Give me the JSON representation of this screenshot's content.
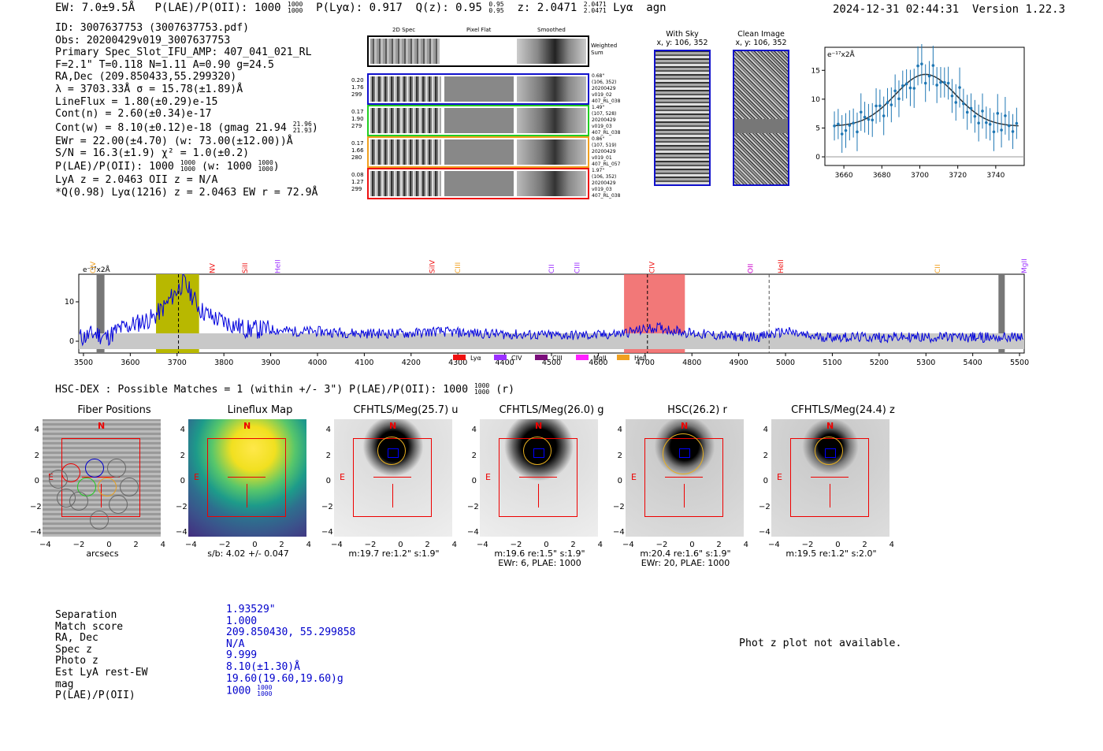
{
  "header": {
    "ew": "EW: 7.0±9.5Å",
    "plae_label": "P(LAE)/P(OII): 1000",
    "plae_sup": "1000",
    "plae_sub": "1000",
    "plya": "P(Lyα): 0.917",
    "qz_label": "Q(z): 0.95",
    "qz_sup": "0.95",
    "qz_sub": "0.95",
    "z_label": "z: 2.0471",
    "z_sup": "2.0471",
    "z_sub": "2.0471",
    "line": "Lyα",
    "agn": "agn",
    "timestamp": "2024-12-31 02:44:31",
    "version": "Version 1.22.3"
  },
  "info": {
    "id": "ID: 3007637753 (3007637753.pdf)",
    "obs": "Obs: 20200429v019_3007637753",
    "primary": "Primary Spec_Slot_IFU_AMP: 407_041_021_RL",
    "fiber": "F=2.1\"  T=0.118  N=1.11  A=0.90  g=24.5",
    "radec": "RA,Dec (209.850433,55.299320)",
    "lambda": "λ = 3703.33Å  σ = 15.78(±1.89)Å",
    "lineflux": "LineFlux = 1.80(±0.29)e-15",
    "contn": "Cont(n) = 2.60(±0.34)e-17",
    "contw": "Cont(w) = 8.10(±0.12)e-18 (gmag 21.94",
    "contw_sup": "21.96",
    "contw_sub": "21.93",
    "contw_end": ")",
    "ewr": "EWr = 22.00(±4.70) (w: 73.00(±12.00))Å",
    "sn": "S/N = 16.3(±1.9)  χ² = 1.0(±0.2)",
    "plae": "P(LAE)/P(OII): 1000",
    "plae_sup": "1000",
    "plae_sub": "1000",
    "plae_w": "(w: 1000",
    "plae_w_sup": "1000",
    "plae_w_sub": "1000",
    "plae_w_end": ")",
    "lyaz": "LyA z = 2.0463  OII z = N/A",
    "qline": "*Q(0.98) Lyα(1216) z = 2.0463  EW r = 72.9Å"
  },
  "spec2d": {
    "col_headers": [
      "2D Spec",
      "Pixel Flat",
      "Smoothed"
    ],
    "weighted_sum": "Weighted Sum",
    "rows": [
      {
        "left": [
          "0.20",
          "1.76",
          "299"
        ],
        "right": [
          "0.68\"",
          "(106, 352)",
          "20200429",
          "v019_02",
          "407_RL_038"
        ],
        "color": "#1010cc"
      },
      {
        "left": [
          "0.17",
          "1.90",
          "279"
        ],
        "right": [
          "1.49\"",
          "(107, 528)",
          "20200429",
          "v019_03",
          "407_RL_038"
        ],
        "color": "#22cc22"
      },
      {
        "left": [
          "0.17",
          "1.66",
          "280"
        ],
        "right": [
          "0.86\"",
          "(107, 519)",
          "20200429",
          "v019_01",
          "407_RL_057"
        ],
        "color": "#f0a020"
      },
      {
        "left": [
          "0.08",
          "1.27",
          "299"
        ],
        "right": [
          "1.97\"",
          "(106, 352)",
          "20200429",
          "v019_03",
          "407_RL_038"
        ],
        "color": "#ee1111"
      }
    ]
  },
  "sky": {
    "with_sky_title": "With Sky",
    "with_sky_coords": "x, y: 106, 352",
    "clean_title": "Clean Image",
    "clean_coords": "x, y: 106, 352"
  },
  "zoom_plot": {
    "unit": "e⁻¹⁷x2Å",
    "x_ticks": [
      "3660",
      "3680",
      "3700",
      "3720",
      "3740"
    ],
    "y_ticks": [
      "0",
      "5",
      "10",
      "15"
    ]
  },
  "chart_data": {
    "type": "line",
    "unit_label": "e⁻¹⁷x2Å",
    "xlim": [
      3490,
      5510
    ],
    "ylim": [
      -3,
      17
    ],
    "x_ticks": [
      3500,
      3600,
      3700,
      3800,
      3900,
      4000,
      4100,
      4200,
      4300,
      4400,
      4500,
      4600,
      4700,
      4800,
      4900,
      5000,
      5100,
      5200,
      5300,
      5400,
      5500
    ],
    "y_ticks": [
      0,
      10
    ],
    "line_markers": [
      {
        "label": "CIV",
        "x": 3520,
        "color": "#f0a020"
      },
      {
        "label": "NV",
        "x": 3775,
        "color": "#ee1111"
      },
      {
        "label": "SiII",
        "x": 3845,
        "color": "#ee1111"
      },
      {
        "label": "HeII",
        "x": 3915,
        "color": "#9b30ff"
      },
      {
        "label": "SiIV",
        "x": 4245,
        "color": "#ee1111"
      },
      {
        "label": "CIII",
        "x": 4300,
        "color": "#f0a020"
      },
      {
        "label": "CII",
        "x": 4500,
        "color": "#9b30ff"
      },
      {
        "label": "CIII",
        "x": 4555,
        "color": "#9b30ff"
      },
      {
        "label": "CIV",
        "x": 4715,
        "color": "#ee1111"
      },
      {
        "label": "OII",
        "x": 4925,
        "color": "#cc00cc"
      },
      {
        "label": "HeII",
        "x": 4990,
        "color": "#ee1111"
      },
      {
        "label": "CII",
        "x": 5325,
        "color": "#f0a020"
      },
      {
        "label": "MgII",
        "x": 5510,
        "color": "#9b30ff"
      }
    ],
    "legend": [
      {
        "label": "Lyα",
        "color": "#ee1111"
      },
      {
        "label": "CIV",
        "color": "#9b30ff"
      },
      {
        "label": "CIII",
        "color": "#7b0e7b"
      },
      {
        "label": "MgII",
        "color": "#ff22ff"
      },
      {
        "label": "HeII",
        "color": "#f0a020"
      }
    ],
    "series": [
      {
        "x": [
          3500,
          3525,
          3550,
          3575,
          3600,
          3625,
          3650,
          3675,
          3700,
          3715,
          3730,
          3750,
          3775,
          3800,
          3825,
          3850,
          3900,
          3950,
          4000,
          4050,
          4100,
          4150,
          4200,
          4250,
          4300,
          4350,
          4400,
          4450,
          4500,
          4550,
          4600,
          4650,
          4700,
          4725,
          4750,
          4800,
          4850,
          4900,
          4950,
          5000,
          5050,
          5100,
          5150,
          5200,
          5250,
          5300,
          5350,
          5400,
          5450,
          5500
        ],
        "y": [
          1,
          2,
          1,
          3,
          4,
          5,
          6,
          9,
          13,
          15,
          12,
          8,
          6,
          5,
          4,
          3,
          3,
          2.5,
          2.5,
          2.2,
          2,
          2,
          2,
          2.5,
          2.2,
          2,
          1.8,
          1.6,
          1.5,
          1.5,
          1.5,
          2,
          3,
          3.5,
          3,
          2,
          1.5,
          1.2,
          1.2,
          2.5,
          1.2,
          1.1,
          1,
          1,
          1,
          1,
          1,
          1,
          1,
          1
        ]
      }
    ]
  },
  "hscdex": {
    "text": "HSC-DEX : Possible Matches = 1 (within +/- 3\")  P(LAE)/P(OII): 1000",
    "sup": "1000",
    "sub": "1000",
    "tail": "(r)"
  },
  "cutouts": [
    {
      "title": "Fiber Positions",
      "cap1": "arcsecs",
      "cap2": ""
    },
    {
      "title": "Lineflux Map",
      "cap1": "s/b: 4.02 +/- 0.047",
      "cap2": ""
    },
    {
      "title": "CFHTLS/Meg(25.7) u",
      "cap1": "m:19.7  re:1.2\"  s:1.9\"",
      "cap2": ""
    },
    {
      "title": "CFHTLS/Meg(26.0) g",
      "cap1": "m:19.6  re:1.5\"  s:1.9\"",
      "cap2": "EWr: 6, PLAE: 1000"
    },
    {
      "title": "HSC(26.2) r",
      "cap1": "m:20.4  re:1.6\"  s:1.9\"",
      "cap2": "EWr: 20, PLAE: 1000"
    },
    {
      "title": "CFHTLS/Meg(24.4) z",
      "cap1": "m:19.5  re:1.2\"  s:2.0\"",
      "cap2": ""
    }
  ],
  "cut_axes": {
    "ticks": [
      "−4",
      "−2",
      "0",
      "2",
      "4"
    ],
    "yticks": [
      "4",
      "2",
      "0",
      "−2",
      "−4"
    ],
    "n": "N",
    "e": "E"
  },
  "lower": {
    "labels": [
      "Separation",
      "Match score",
      "RA, Dec",
      "Spec z",
      "Photo z",
      "Est LyA rest-EW",
      "mag",
      "P(LAE)/P(OII)"
    ],
    "values": [
      "1.93529\"",
      "1.000",
      "209.850430, 55.299858",
      "N/A",
      "9.999",
      "8.10(±1.30)Å",
      "19.60(19.60,19.60)g",
      "1000"
    ],
    "plae_sup": "1000",
    "plae_sub": "1000",
    "photz_msg": "Phot z plot not available."
  }
}
